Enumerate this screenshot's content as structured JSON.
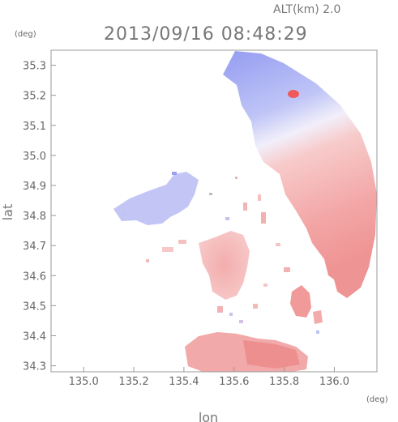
{
  "altitude_label": "ALT(km)  2.0",
  "timestamp": "2013/09/16 08:48:29",
  "y_unit": "(deg)",
  "x_unit": "(deg)",
  "x_axis_label": "lon",
  "y_axis_label": "lat",
  "x_ticks": [
    "135.0",
    "135.2",
    "135.4",
    "135.6",
    "135.8",
    "136.0"
  ],
  "y_ticks": [
    "35.3",
    "35.2",
    "35.1",
    "35.0",
    "34.9",
    "34.8",
    "34.7",
    "34.6",
    "34.5",
    "34.4",
    "34.3"
  ],
  "chart_data": {
    "type": "heatmap",
    "xlabel": "lon",
    "ylabel": "lat",
    "xlim": [
      134.87,
      136.17
    ],
    "ylim": [
      34.28,
      35.35
    ],
    "colors": {
      "approaching": "#8c96ee",
      "receding": "#ee8c8c",
      "neutral": "#ffffff"
    }
  }
}
